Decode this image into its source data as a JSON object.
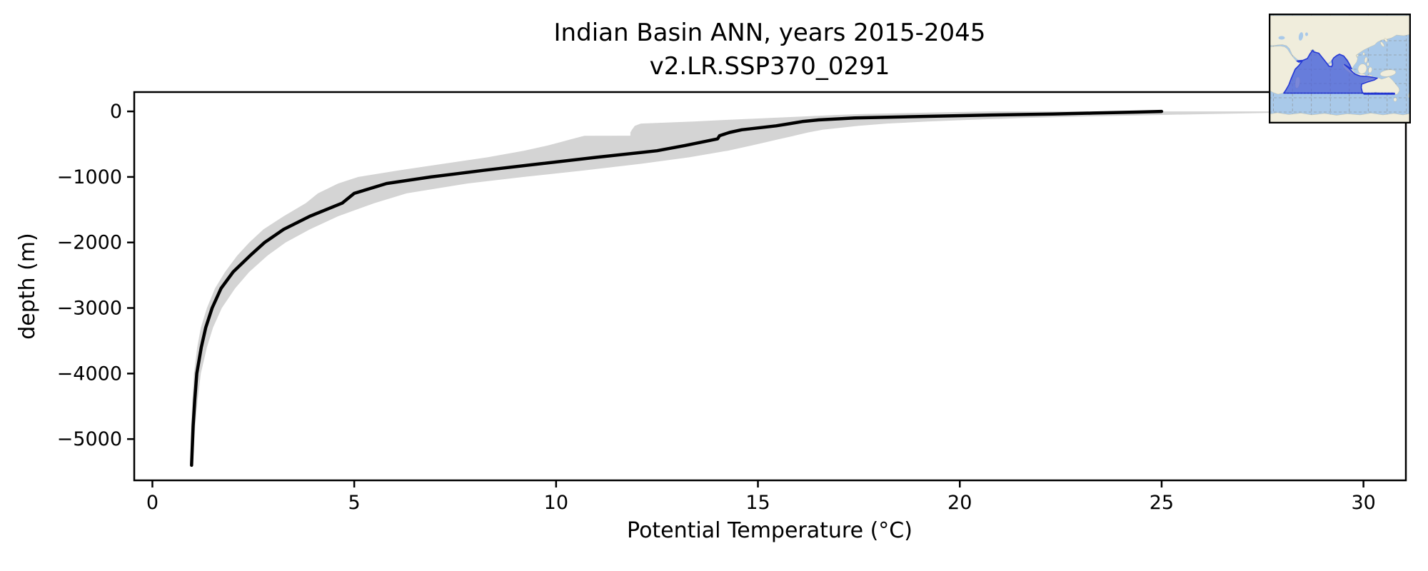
{
  "figure": {
    "title_line1": "Indian Basin ANN, years 2015-2045",
    "title_line2": "v2.LR.SSP370_0291",
    "xlabel": "Potential Temperature (°C)",
    "ylabel": "depth (m)"
  },
  "colors": {
    "background": "#ffffff",
    "band": "#d4d4d4",
    "line": "#000000",
    "frame": "#000000",
    "ocean": "#a9c9e9",
    "land": "#f0eddc",
    "land_edge": "#bdbaa0",
    "basin_fill": "#4d5fd6",
    "basin_edge": "#2639d6",
    "map_grid": "#8c8c8c",
    "map_border": "#000000"
  },
  "chart_data": {
    "type": "line",
    "title": "Indian Basin ANN, years 2015-2045",
    "subtitle": "v2.LR.SSP370_0291",
    "xlabel": "Potential Temperature (°C)",
    "ylabel": "depth (m)",
    "grid": false,
    "legend": "none",
    "xlim": [
      -0.45,
      31.05
    ],
    "ylim": [
      -5630,
      295
    ],
    "x_ticks": [
      0,
      5,
      10,
      15,
      20,
      25,
      30
    ],
    "x_tick_labels": [
      "0",
      "5",
      "10",
      "15",
      "20",
      "25",
      "30"
    ],
    "y_ticks": [
      0,
      -1000,
      -2000,
      -3000,
      -4000,
      -5000
    ],
    "y_tick_labels": [
      "0",
      "−1000",
      "−2000",
      "−3000",
      "−4000",
      "−5000"
    ],
    "depth_m": [
      0,
      -10,
      -25,
      -40,
      -55,
      -75,
      -100,
      -130,
      -155,
      -185,
      -220,
      -280,
      -320,
      -370,
      -372,
      -420,
      -470,
      -520,
      -600,
      -700,
      -800,
      -900,
      -1000,
      -1100,
      -1250,
      -1400,
      -1600,
      -1800,
      -2000,
      -2200,
      -2450,
      -2700,
      -3000,
      -3300,
      -3600,
      -4000,
      -4400,
      -4800,
      -5100,
      -5400
    ],
    "series": [
      {
        "name": "mean",
        "values": [
          25.0,
          24.4,
          23.3,
          22.3,
          20.8,
          19.2,
          17.4,
          16.5,
          16.1,
          15.8,
          15.45,
          14.6,
          14.3,
          14.05,
          14.05,
          14.0,
          13.6,
          13.2,
          12.5,
          11.0,
          9.6,
          8.2,
          6.9,
          5.8,
          5.0,
          4.7,
          3.9,
          3.25,
          2.78,
          2.42,
          2.0,
          1.7,
          1.48,
          1.32,
          1.21,
          1.1,
          1.05,
          1.01,
          0.99,
          0.97
        ]
      },
      {
        "name": "range_min",
        "values": [
          20.8,
          19.9,
          18.7,
          17.6,
          16.9,
          16.2,
          15.3,
          14.2,
          13.4,
          12.1,
          11.95,
          11.88,
          11.84,
          11.84,
          10.7,
          10.4,
          10.1,
          9.8,
          9.2,
          8.3,
          7.2,
          6.1,
          5.1,
          4.6,
          4.1,
          3.8,
          3.25,
          2.75,
          2.4,
          2.1,
          1.8,
          1.55,
          1.35,
          1.2,
          1.11,
          1.03,
          0.99,
          0.96,
          0.945,
          0.93
        ]
      },
      {
        "name": "range_max",
        "values": [
          29.2,
          28.6,
          27.5,
          26.2,
          24.9,
          23.2,
          21.6,
          20.2,
          19.2,
          18.2,
          17.5,
          16.6,
          16.25,
          15.9,
          15.9,
          15.55,
          15.2,
          14.85,
          14.25,
          13.3,
          12.1,
          10.7,
          9.2,
          7.8,
          6.3,
          5.5,
          4.6,
          3.9,
          3.3,
          2.85,
          2.4,
          2.05,
          1.72,
          1.5,
          1.35,
          1.2,
          1.12,
          1.06,
          1.03,
          1.0
        ]
      }
    ]
  },
  "inset_map": {
    "description": "Indian Ocean basin locator map",
    "region": "Indian Basin"
  }
}
